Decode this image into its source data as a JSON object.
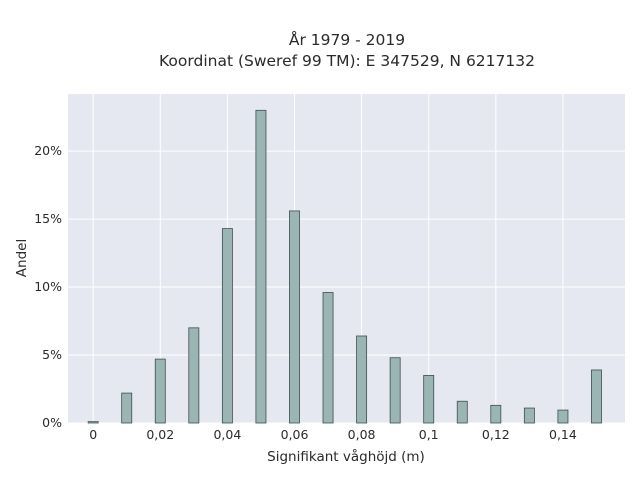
{
  "chart_data": {
    "type": "bar",
    "title_lines": [
      "År 1979 - 2019",
      "Koordinat (Sweref 99 TM): E 347529, N 6217132"
    ],
    "xlabel": "Signifikant våghöjd (m)",
    "ylabel": "Andel",
    "x": [
      0,
      0.01,
      0.02,
      0.03,
      0.04,
      0.05,
      0.06,
      0.07,
      0.08,
      0.09,
      0.1,
      0.11,
      0.12,
      0.13,
      0.14,
      0.15
    ],
    "values": [
      0.1,
      2.2,
      4.7,
      7.0,
      14.3,
      23.0,
      15.6,
      9.6,
      6.4,
      4.8,
      3.5,
      1.6,
      1.3,
      1.1,
      0.95,
      3.9
    ],
    "xlim": [
      -0.0075,
      0.1585
    ],
    "ylim": [
      0,
      24.2
    ],
    "x_ticks": [
      0,
      0.02,
      0.04,
      0.06,
      0.08,
      0.1,
      0.12,
      0.14
    ],
    "x_tick_labels": [
      "0",
      "0,02",
      "0,04",
      "0,06",
      "0,08",
      "0,1",
      "0,12",
      "0,14"
    ],
    "y_ticks": [
      0,
      5,
      10,
      15,
      20
    ],
    "y_tick_labels": [
      "0%",
      "5%",
      "10%",
      "15%",
      "20%"
    ],
    "grid": true,
    "colors": {
      "plot_bg": "#e5e8f0",
      "bar_fill": "#9bb4b4",
      "bar_edge": "#3d4f4f"
    }
  }
}
